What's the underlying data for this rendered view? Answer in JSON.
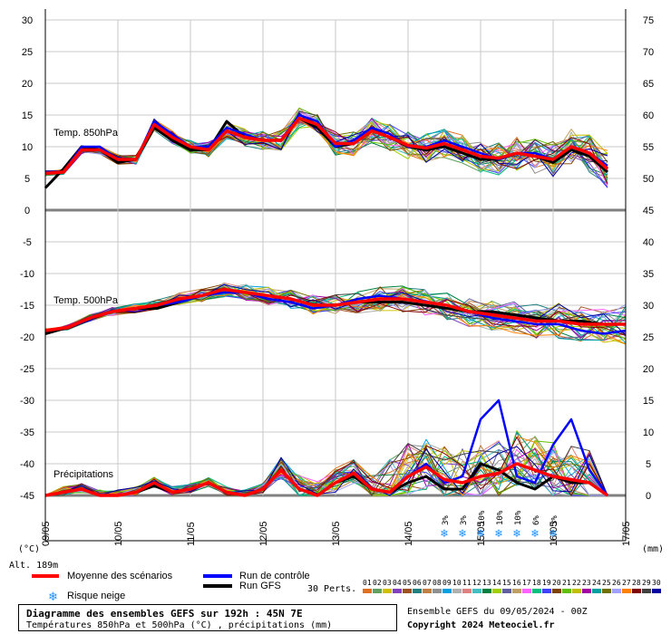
{
  "header": {
    "left_unit": "(°C)",
    "right_unit": "(mm)",
    "altitude": "Alt. 189m"
  },
  "legend": {
    "mean": "Moyenne des scénarios",
    "control": "Run de contrôle",
    "gfs": "Run GFS",
    "snow": "Risque neige",
    "perts_label": "30 Perts.",
    "colors": {
      "mean": "#ff0000",
      "control": "#0000ff",
      "gfs": "#000000"
    }
  },
  "footer": {
    "title": "Diagramme des ensembles GEFS sur 192h : 45N 7E",
    "subtitle": "Températures 850hPa et 500hPa (°C) , précipitations (mm)",
    "run_info": "Ensemble GEFS du 09/05/2024 - 00Z",
    "copyright": "Copyright 2024 Meteociel.fr"
  },
  "chart_data": {
    "type": "line",
    "panels": [
      "Temp. 850hPa",
      "Temp. 500hPa",
      "Précipitations"
    ],
    "x_dates": [
      "09/05",
      "10/05",
      "11/05",
      "12/05",
      "13/05",
      "14/05",
      "15/05",
      "16/05",
      "17/05"
    ],
    "x_range_hours": [
      0,
      192
    ],
    "left_axis_ticks": [
      30,
      25,
      20,
      15,
      10,
      5,
      0,
      -5,
      -10,
      -15,
      -20,
      -25,
      -30,
      -35,
      -40,
      -45
    ],
    "right_axis_ticks": [
      75,
      70,
      65,
      60,
      55,
      50,
      45,
      40,
      35,
      30,
      25,
      20,
      15,
      10,
      5,
      0
    ],
    "step_hours": 6,
    "t850": {
      "mean": [
        5.8,
        6,
        9.5,
        9.5,
        8,
        8,
        13.5,
        11.5,
        10,
        9.5,
        12.5,
        11.5,
        11,
        11,
        14.5,
        13.5,
        10.5,
        10.5,
        12.5,
        11.5,
        10.2,
        9.8,
        10.5,
        9.5,
        8.5,
        8.2,
        9,
        8.5,
        8,
        10,
        9,
        6.5
      ],
      "control": [
        6,
        6,
        10,
        10,
        8,
        8,
        14,
        12,
        10,
        10,
        13,
        12,
        11,
        11,
        15,
        14,
        10,
        11,
        13,
        12,
        10,
        10,
        11,
        10,
        9,
        8,
        9,
        9,
        8,
        10,
        9,
        7
      ],
      "gfs": [
        3.5,
        6.5,
        10,
        9.5,
        7.5,
        8,
        13,
        11,
        9.5,
        9.5,
        14,
        11.5,
        11,
        11,
        14.5,
        13,
        10,
        10.5,
        12.5,
        11.5,
        10,
        9.5,
        10,
        9,
        8,
        8,
        9,
        8.5,
        7.5,
        9.5,
        8.5,
        6
      ]
    },
    "t500": {
      "mean": [
        -19,
        -18.5,
        -17,
        -16,
        -15.5,
        -15,
        -14,
        -13.5,
        -12.5,
        -13,
        -13.5,
        -14,
        -15,
        -15,
        -14.5,
        -14,
        -14,
        -14.5,
        -15,
        -16,
        -16.5,
        -17,
        -17.5,
        -17.5,
        -18,
        -18,
        -18
      ],
      "control": [
        -19,
        -18.5,
        -17,
        -16,
        -15.5,
        -15,
        -14.5,
        -13.5,
        -13,
        -13,
        -14,
        -14.5,
        -15.5,
        -15,
        -14,
        -13.5,
        -14,
        -14.5,
        -15,
        -16,
        -17,
        -17.5,
        -18,
        -18,
        -19,
        -19.5,
        -19
      ],
      "gfs": [
        -19.5,
        -18.5,
        -17,
        -16,
        -15.5,
        -15.5,
        -14.5,
        -13.5,
        -12.5,
        -13,
        -13.5,
        -14,
        -15,
        -15,
        -14.5,
        -14.5,
        -14.5,
        -15,
        -15.5,
        -16,
        -16,
        -16.5,
        -17,
        -17.5,
        -17.5,
        -18,
        -18
      ]
    },
    "precip_mm": {
      "mean": [
        0,
        0.5,
        1,
        0,
        0,
        0.5,
        2,
        0.5,
        1,
        2,
        0.5,
        0,
        1,
        4,
        1,
        0,
        2,
        3.5,
        1,
        0.5,
        3,
        4.5,
        2.5,
        2,
        3,
        3.5,
        5,
        4,
        3,
        2.5,
        2,
        0
      ],
      "control": [
        0,
        0.5,
        1,
        0,
        0,
        0.5,
        2,
        0.5,
        1,
        2,
        0.5,
        0,
        1,
        4,
        1,
        0,
        2,
        3.5,
        1,
        0.5,
        3,
        5,
        2,
        3,
        12,
        15,
        3,
        2,
        8,
        12,
        4,
        0
      ],
      "gfs": [
        0,
        0.5,
        1,
        0,
        0,
        0.5,
        1.5,
        0.5,
        1,
        2,
        0.5,
        0,
        1,
        4,
        1,
        0,
        2,
        3,
        1,
        0.5,
        2,
        3,
        1,
        1,
        5,
        4,
        2,
        1,
        3,
        2,
        2,
        0
      ]
    },
    "snow_risk": [
      {
        "hour": 132,
        "pct": "3%"
      },
      {
        "hour": 138,
        "pct": "3%"
      },
      {
        "hour": 144,
        "pct": "10%"
      },
      {
        "hour": 150,
        "pct": "10%"
      },
      {
        "hour": 156,
        "pct": "10%"
      },
      {
        "hour": 162,
        "pct": "6%"
      },
      {
        "hour": 168,
        "pct": "3%"
      }
    ],
    "members": [
      "01",
      "02",
      "03",
      "04",
      "05",
      "06",
      "07",
      "08",
      "09",
      "10",
      "11",
      "12",
      "13",
      "14",
      "15",
      "16",
      "17",
      "18",
      "19",
      "20",
      "21",
      "22",
      "23",
      "24",
      "25",
      "26",
      "27",
      "28",
      "29",
      "30"
    ],
    "member_colors": [
      "#e07020",
      "#60a060",
      "#d0c000",
      "#8040c0",
      "#a05020",
      "#208080",
      "#c08040",
      "#909090",
      "#00a0e0",
      "#b0b0b0",
      "#e08080",
      "#40c0c0",
      "#008040",
      "#a0d000",
      "#6060a0",
      "#c0a060",
      "#ff60ff",
      "#00c080",
      "#4040ff",
      "#804000",
      "#60c000",
      "#c0c000",
      "#a000a0",
      "#00a0a0",
      "#707000",
      "#a0a0ff",
      "#ff8000",
      "#800000",
      "#404040",
      "#0000a0"
    ]
  }
}
